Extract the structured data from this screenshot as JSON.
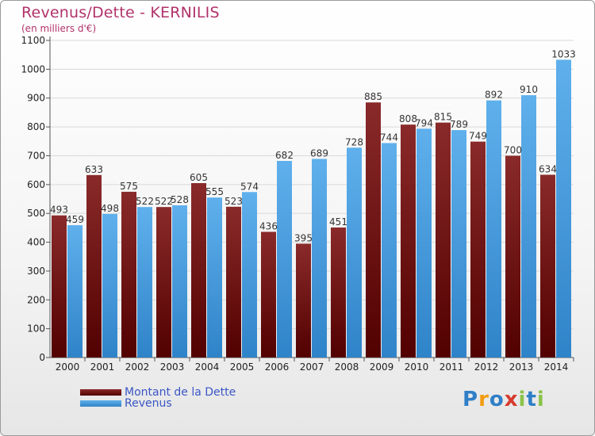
{
  "header": {
    "title": "Revenus/Dette - KERNILIS",
    "subtitle": "(en milliers d'€)"
  },
  "colors": {
    "dette_top": "#8a2a2a",
    "dette_bottom": "#520000",
    "revenus_top": "#5fb0ec",
    "revenus_bottom": "#2f83c8",
    "title": "#b1326a",
    "legend_text": "#3a56c4"
  },
  "legend": {
    "dette_label": "Montant de la Dette",
    "revenus_label": "Revenus"
  },
  "logo": {
    "letters": [
      "P",
      "r",
      "o",
      "x",
      "i",
      "t",
      "i"
    ],
    "colors": [
      "#2f7fc7",
      "#f39c12",
      "#2f7fc7",
      "#d63b2e",
      "#8bc34a",
      "#2f7fc7",
      "#8bc34a"
    ]
  },
  "chart_data": {
    "type": "bar",
    "title": "Revenus/Dette - KERNILIS",
    "ylabel": "(en milliers d'€)",
    "xlabel": "",
    "categories": [
      "2000",
      "2001",
      "2002",
      "2003",
      "2004",
      "2005",
      "2006",
      "2007",
      "2008",
      "2009",
      "2010",
      "2011",
      "2012",
      "2013",
      "2014"
    ],
    "series": [
      {
        "name": "Montant de la Dette",
        "values": [
          493,
          633,
          575,
          522,
          605,
          523,
          436,
          395,
          451,
          885,
          808,
          815,
          749,
          700,
          634
        ]
      },
      {
        "name": "Revenus",
        "values": [
          459,
          498,
          522,
          528,
          555,
          574,
          682,
          689,
          728,
          744,
          794,
          789,
          892,
          910,
          1033
        ]
      }
    ],
    "ylim": [
      0,
      1100
    ],
    "yticks": [
      0,
      100,
      200,
      300,
      400,
      500,
      600,
      700,
      800,
      900,
      1000,
      1100
    ],
    "grid": true,
    "legend_position": "bottom-left"
  }
}
